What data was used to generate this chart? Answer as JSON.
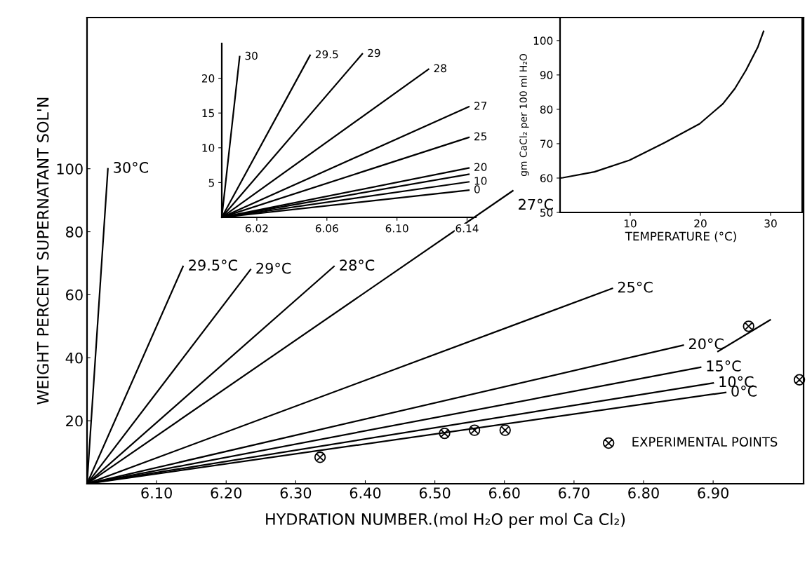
{
  "chart_data": [
    {
      "type": "line",
      "xlabel": "HYDRATION NUMBER.(mol H₂O per mol Ca Cl₂)",
      "ylabel": "WEIGHT PERCENT SUPERNATANT SOL'N",
      "xlim": [
        6.0,
        7.03
      ],
      "ylim": [
        0,
        148
      ],
      "xticks": [
        {
          "value": 6.1,
          "label": "6.10"
        },
        {
          "value": 6.2,
          "label": "6.20"
        },
        {
          "value": 6.3,
          "label": "6.30"
        },
        {
          "value": 6.4,
          "label": "6.40"
        },
        {
          "value": 6.5,
          "label": "6.50"
        },
        {
          "value": 6.6,
          "label": "6.60"
        },
        {
          "value": 6.7,
          "label": "6.70"
        },
        {
          "value": 6.8,
          "label": "6.80"
        },
        {
          "value": 6.9,
          "label": "6.90"
        }
      ],
      "yticks": [
        20,
        40,
        60,
        80,
        100
      ],
      "grid": false,
      "legend": "bottom right",
      "series": [
        {
          "name": "30°C",
          "color": "#000000",
          "x": [
            6.0,
            6.03
          ],
          "values": [
            0,
            100
          ]
        },
        {
          "name": "29.5°C",
          "color": "#000000",
          "x": [
            6.0,
            6.138
          ],
          "values": [
            0,
            69
          ]
        },
        {
          "name": "29°C",
          "color": "#000000",
          "x": [
            6.0,
            6.235
          ],
          "values": [
            0,
            68
          ]
        },
        {
          "name": "28°C",
          "color": "#000000",
          "x": [
            6.0,
            6.355
          ],
          "values": [
            0,
            69
          ]
        },
        {
          "name": "27°C",
          "color": "#000000",
          "x": [
            6.0,
            6.612
          ],
          "values": [
            0,
            93
          ]
        },
        {
          "name": "25°C",
          "color": "#000000",
          "x": [
            6.0,
            6.755
          ],
          "values": [
            0,
            62
          ]
        },
        {
          "name": "20°C",
          "color": "#000000",
          "x": [
            6.0,
            6.857
          ],
          "values": [
            0,
            44
          ]
        },
        {
          "name": "15°C",
          "color": "#000000",
          "x": [
            6.0,
            6.882
          ],
          "values": [
            0,
            37
          ]
        },
        {
          "name": "10°C",
          "color": "#000000",
          "x": [
            6.0,
            6.9
          ],
          "values": [
            0,
            32
          ]
        },
        {
          "name": "0°C",
          "color": "#000000",
          "x": [
            6.0,
            6.918
          ],
          "values": [
            0,
            29
          ]
        },
        {
          "color": "#000000",
          "x": [
            6.907,
            6.982
          ],
          "values": [
            42,
            52
          ]
        },
        {
          "name": "EXPERIMENTAL POINTS",
          "type": "scatter",
          "marker": "cross",
          "color": "#000000",
          "x": [
            6.335,
            6.514,
            6.557,
            6.601,
            6.951,
            7.024
          ],
          "values": [
            8.4,
            16,
            17,
            17,
            50,
            33
          ]
        }
      ]
    },
    {
      "type": "line",
      "xlabel": "TEMPERATURE (°C)",
      "ylabel": "gm CaCl₂ per 100 ml H₂O",
      "xlim": [
        0,
        34.5
      ],
      "ylim": [
        50,
        106.7
      ],
      "xticks": [
        10,
        20,
        30
      ],
      "yticks": [
        50,
        60,
        70,
        80,
        90,
        100
      ],
      "grid": false,
      "series": [
        {
          "color": "#000000",
          "x": [
            0,
            0.4,
            4.9,
            9.9,
            14.9,
            19.9,
            23.2,
            24.9,
            26.5,
            28.2,
            29.0
          ],
          "values": [
            60,
            60.1,
            61.8,
            65.2,
            70.3,
            75.8,
            81.6,
            86.0,
            91.4,
            98.2,
            102.7
          ]
        }
      ]
    },
    {
      "type": "line",
      "xlim": [
        6.0,
        6.145
      ],
      "ylim": [
        0,
        25
      ],
      "xticks": [
        6.02,
        6.06,
        {
          "value": 6.1,
          "label": "6.10"
        },
        6.14
      ],
      "yticks": [
        5,
        10,
        15,
        20
      ],
      "grid": false,
      "series": [
        {
          "name": "30",
          "color": "#000000",
          "x": [
            6.0,
            6.0102
          ],
          "values": [
            0,
            23.1
          ]
        },
        {
          "name": "29.5",
          "color": "#000000",
          "x": [
            6.0,
            6.0504
          ],
          "values": [
            0,
            23.3
          ]
        },
        {
          "name": "29",
          "color": "#000000",
          "x": [
            6.0,
            6.0802
          ],
          "values": [
            0,
            23.5
          ]
        },
        {
          "name": "28",
          "color": "#000000",
          "x": [
            6.0,
            6.118
          ],
          "values": [
            0,
            21.3
          ]
        },
        {
          "name": "27",
          "color": "#000000",
          "x": [
            6.0,
            6.141
          ],
          "values": [
            0,
            15.9
          ]
        },
        {
          "name": "25",
          "color": "#000000",
          "x": [
            6.0,
            6.141
          ],
          "values": [
            0,
            11.5
          ]
        },
        {
          "name": "20",
          "color": "#000000",
          "x": [
            6.0,
            6.141
          ],
          "values": [
            0,
            7.1
          ]
        },
        {
          "color": "#000000",
          "x": [
            6.0,
            6.141
          ],
          "values": [
            0,
            6.2
          ]
        },
        {
          "name": "10",
          "color": "#000000",
          "x": [
            6.0,
            6.141
          ],
          "values": [
            0,
            5.1
          ]
        },
        {
          "name": "0",
          "color": "#000000",
          "x": [
            6.0,
            6.141
          ],
          "values": [
            0,
            3.9
          ]
        }
      ]
    }
  ]
}
